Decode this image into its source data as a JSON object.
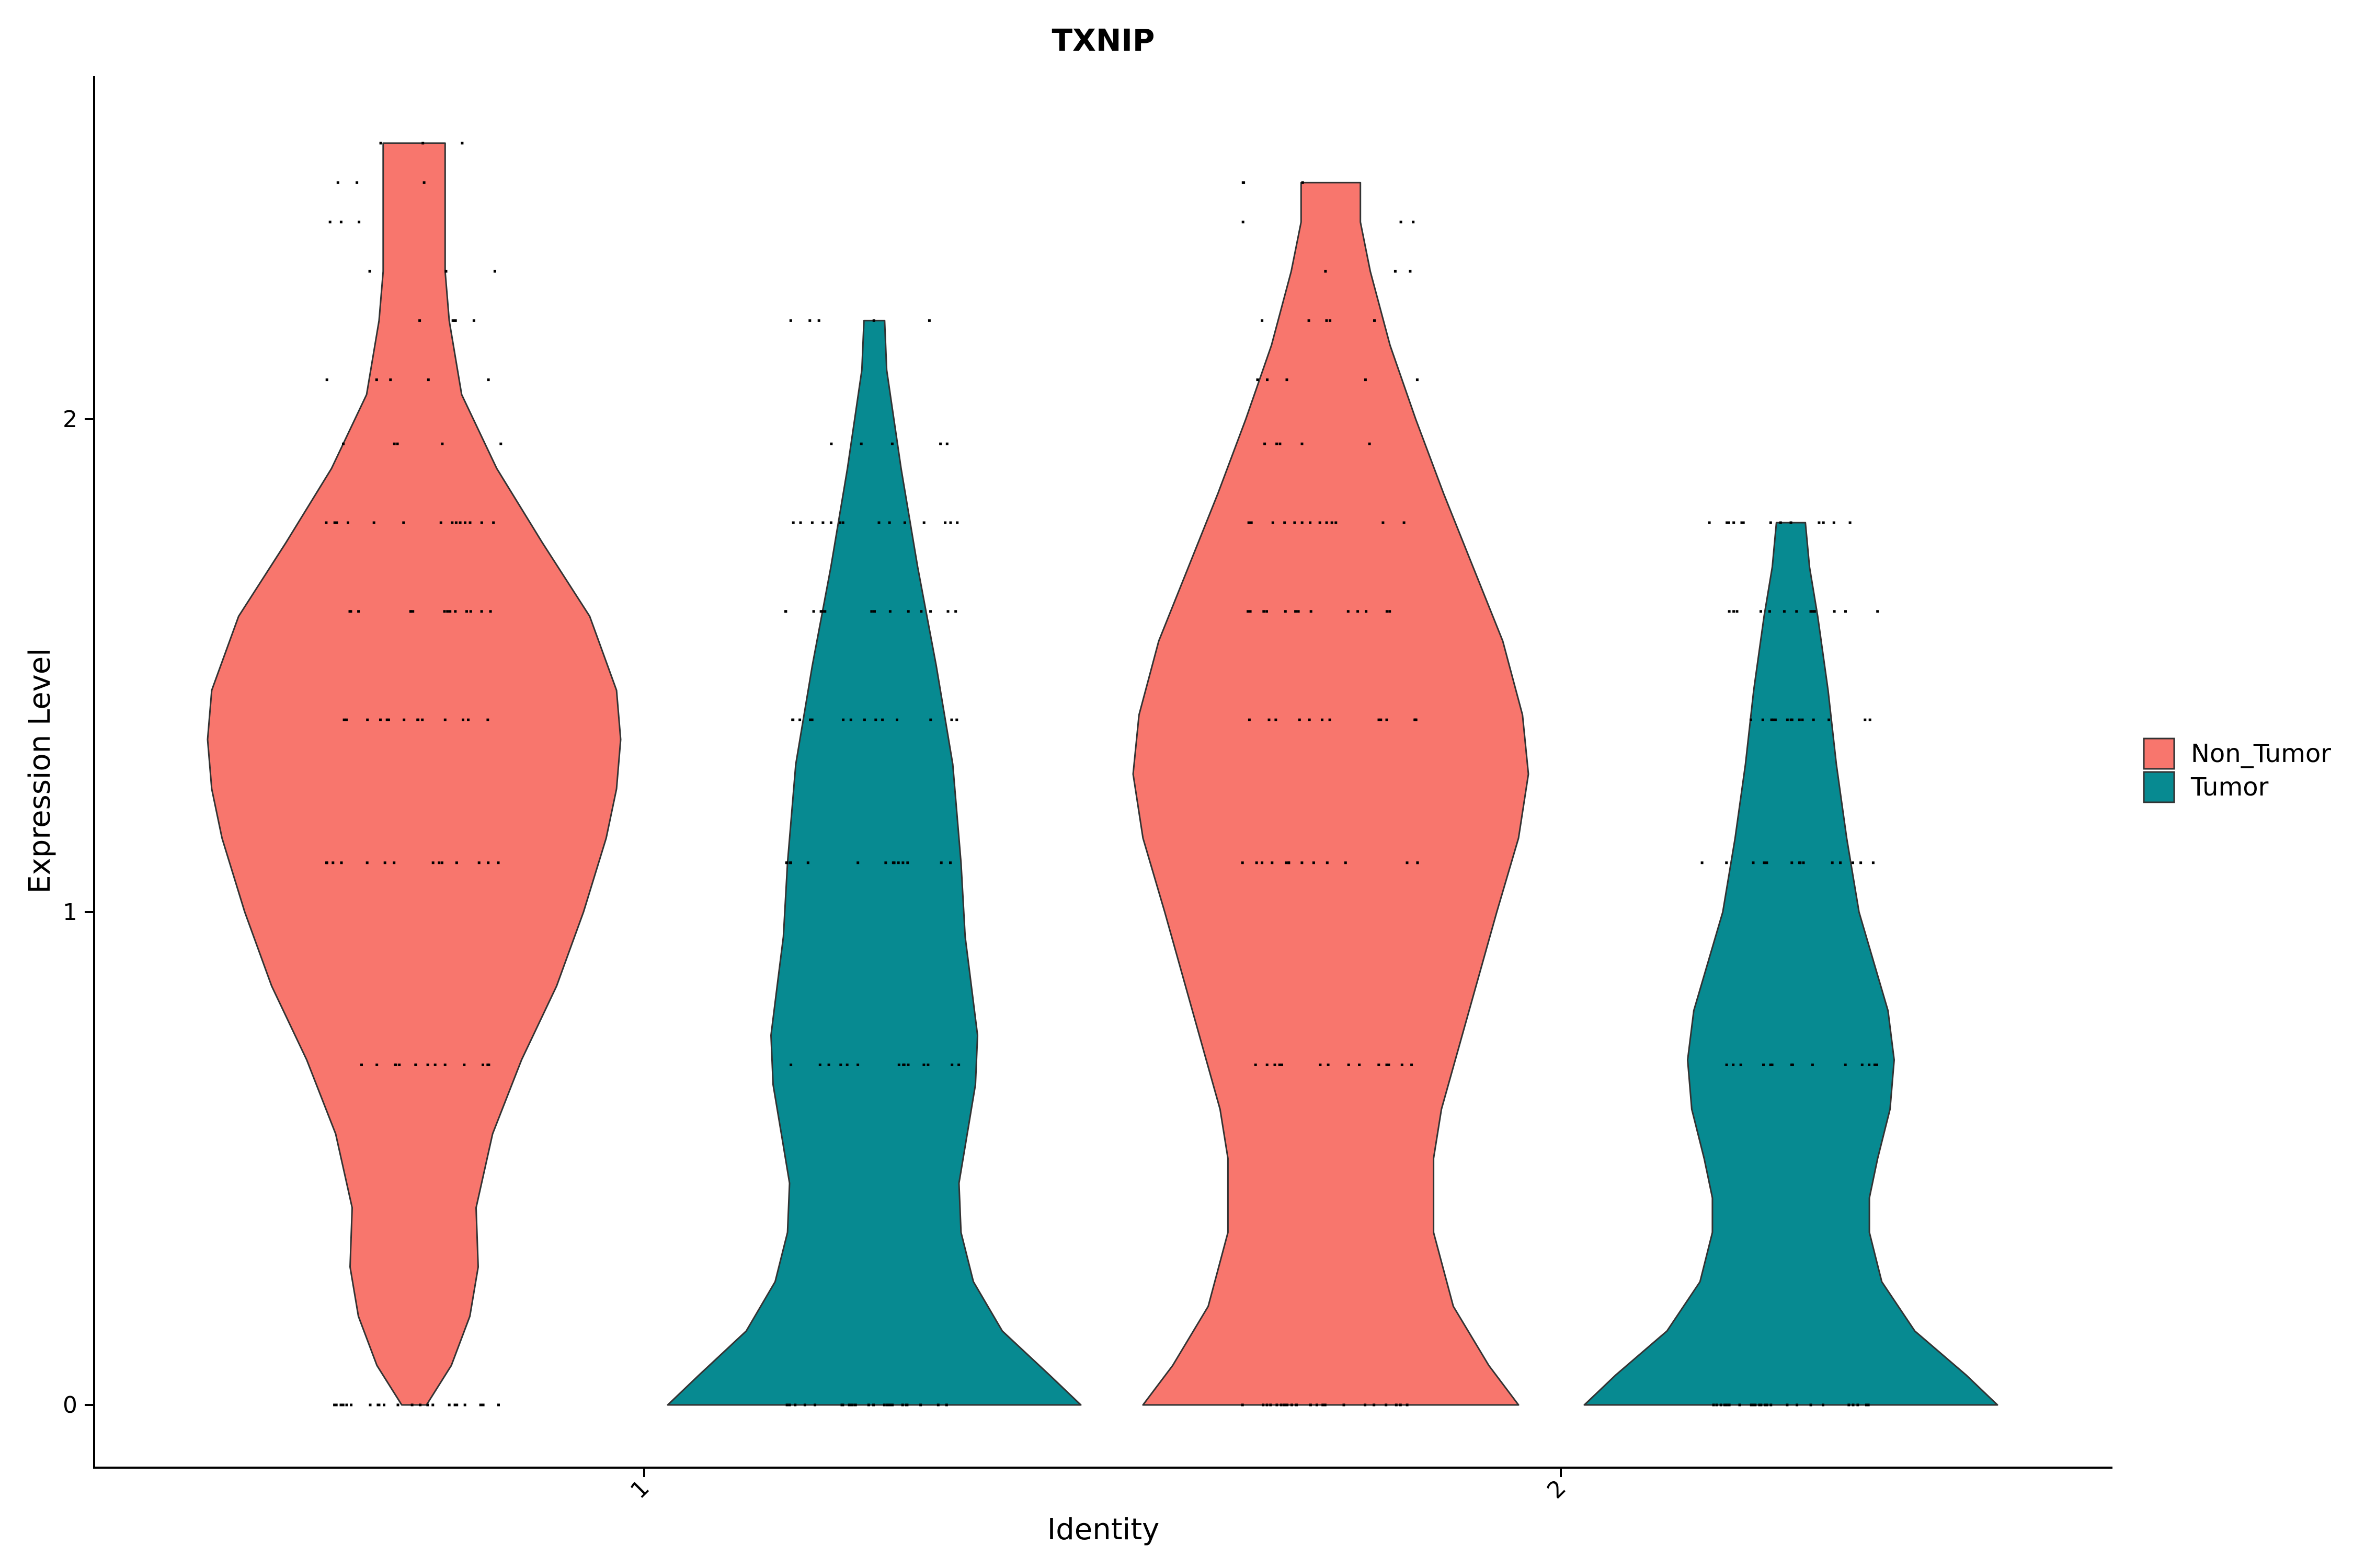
{
  "chart_data": {
    "type": "violin",
    "title": "TXNIP",
    "xlabel": "Identity",
    "ylabel": "Expression Level",
    "categories": [
      "1",
      "2"
    ],
    "yticks": [
      0,
      1,
      2
    ],
    "ylim": [
      -0.13,
      2.82
    ],
    "legend": {
      "placement": "right",
      "entries": [
        {
          "name": "Non_Tumor",
          "color": "#F8766D"
        },
        {
          "name": "Tumor",
          "color": "#078A91"
        }
      ]
    },
    "violins": [
      {
        "category": "1",
        "group": "Non_Tumor",
        "color": "#F8766D",
        "min": 0,
        "max": 2.56,
        "profile": [
          [
            0,
            0.06
          ],
          [
            0.08,
            0.18
          ],
          [
            0.18,
            0.27
          ],
          [
            0.28,
            0.31
          ],
          [
            0.4,
            0.3
          ],
          [
            0.55,
            0.38
          ],
          [
            0.7,
            0.52
          ],
          [
            0.85,
            0.69
          ],
          [
            1.0,
            0.82
          ],
          [
            1.15,
            0.93
          ],
          [
            1.25,
            0.98
          ],
          [
            1.35,
            1.0
          ],
          [
            1.45,
            0.98
          ],
          [
            1.6,
            0.85
          ],
          [
            1.75,
            0.62
          ],
          [
            1.9,
            0.4
          ],
          [
            2.05,
            0.23
          ],
          [
            2.2,
            0.17
          ],
          [
            2.3,
            0.15
          ],
          [
            2.45,
            0.15
          ],
          [
            2.56,
            0.15
          ]
        ],
        "points": [
          0,
          0.69,
          1.1,
          1.39,
          1.61,
          1.79,
          1.95,
          2.08,
          2.2,
          2.3,
          2.4,
          2.48,
          2.56
        ]
      },
      {
        "category": "1",
        "group": "Tumor",
        "color": "#078A91",
        "min": 0,
        "max": 2.2,
        "profile": [
          [
            0,
            1.0
          ],
          [
            0.06,
            0.85
          ],
          [
            0.15,
            0.62
          ],
          [
            0.25,
            0.48
          ],
          [
            0.35,
            0.42
          ],
          [
            0.45,
            0.41
          ],
          [
            0.55,
            0.45
          ],
          [
            0.65,
            0.49
          ],
          [
            0.75,
            0.5
          ],
          [
            0.85,
            0.47
          ],
          [
            0.95,
            0.44
          ],
          [
            1.1,
            0.42
          ],
          [
            1.3,
            0.38
          ],
          [
            1.5,
            0.3
          ],
          [
            1.7,
            0.21
          ],
          [
            1.9,
            0.13
          ],
          [
            2.1,
            0.06
          ],
          [
            2.2,
            0.05
          ]
        ],
        "points": [
          0,
          0.69,
          1.1,
          1.39,
          1.61,
          1.79,
          1.95,
          2.2
        ]
      },
      {
        "category": "2",
        "group": "Non_Tumor",
        "color": "#F8766D",
        "min": 0,
        "max": 2.48,
        "profile": [
          [
            0,
            0.95
          ],
          [
            0.08,
            0.8
          ],
          [
            0.2,
            0.62
          ],
          [
            0.35,
            0.52
          ],
          [
            0.5,
            0.52
          ],
          [
            0.6,
            0.56
          ],
          [
            0.8,
            0.7
          ],
          [
            1.0,
            0.84
          ],
          [
            1.15,
            0.95
          ],
          [
            1.28,
            1.0
          ],
          [
            1.4,
            0.97
          ],
          [
            1.55,
            0.87
          ],
          [
            1.7,
            0.72
          ],
          [
            1.85,
            0.57
          ],
          [
            2.0,
            0.43
          ],
          [
            2.15,
            0.3
          ],
          [
            2.3,
            0.2
          ],
          [
            2.4,
            0.15
          ],
          [
            2.48,
            0.15
          ]
        ],
        "points": [
          0,
          0.69,
          1.1,
          1.39,
          1.61,
          1.79,
          1.95,
          2.08,
          2.2,
          2.3,
          2.4,
          2.48
        ]
      },
      {
        "category": "2",
        "group": "Tumor",
        "color": "#078A91",
        "min": 0,
        "max": 1.79,
        "profile": [
          [
            0,
            1.0
          ],
          [
            0.06,
            0.85
          ],
          [
            0.15,
            0.6
          ],
          [
            0.25,
            0.44
          ],
          [
            0.35,
            0.38
          ],
          [
            0.42,
            0.38
          ],
          [
            0.5,
            0.42
          ],
          [
            0.6,
            0.48
          ],
          [
            0.7,
            0.5
          ],
          [
            0.8,
            0.47
          ],
          [
            0.9,
            0.4
          ],
          [
            1.0,
            0.33
          ],
          [
            1.15,
            0.27
          ],
          [
            1.3,
            0.22
          ],
          [
            1.45,
            0.18
          ],
          [
            1.6,
            0.13
          ],
          [
            1.7,
            0.09
          ],
          [
            1.79,
            0.07
          ]
        ],
        "points": [
          0,
          0.69,
          1.1,
          1.39,
          1.61,
          1.79
        ]
      }
    ]
  }
}
